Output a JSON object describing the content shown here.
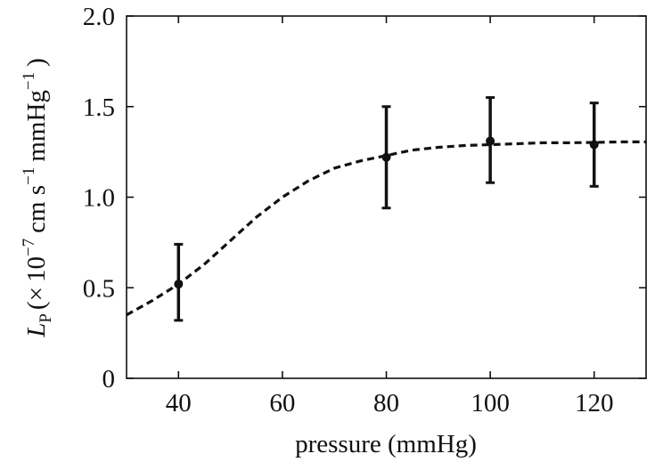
{
  "chart_data": {
    "type": "scatter",
    "title": "",
    "xlabel": "pressure (mmHg)",
    "ylabel": {
      "symbol": "L",
      "subscript": "P",
      "open": "(",
      "times": "×",
      "base": "10",
      "exp1": "−7",
      "unit1": "cm s",
      "exp2": "−1",
      "unit2": "mmHg",
      "exp3": "−1",
      "close": ")"
    },
    "xlim": [
      30,
      130
    ],
    "ylim": [
      0,
      2.0
    ],
    "xticks": [
      40,
      60,
      80,
      100,
      120
    ],
    "xtick_labels": [
      "40",
      "60",
      "80",
      "100",
      "120"
    ],
    "yticks": [
      0,
      0.5,
      1.0,
      1.5,
      2.0
    ],
    "ytick_labels": [
      "0",
      "0.5",
      "1.0",
      "1.5",
      "2.0"
    ],
    "grid": false,
    "points": [
      {
        "x": 40,
        "y": 0.52,
        "err_low": 0.32,
        "err_high": 0.74
      },
      {
        "x": 80,
        "y": 1.22,
        "err_low": 0.94,
        "err_high": 1.5
      },
      {
        "x": 100,
        "y": 1.31,
        "err_low": 1.08,
        "err_high": 1.55
      },
      {
        "x": 120,
        "y": 1.29,
        "err_low": 1.06,
        "err_high": 1.52
      }
    ],
    "fit_curve": {
      "style": "dashed",
      "x": [
        30,
        35,
        40,
        45,
        50,
        55,
        60,
        65,
        70,
        75,
        80,
        85,
        90,
        95,
        100,
        105,
        110,
        115,
        120,
        125,
        130
      ],
      "y": [
        0.35,
        0.43,
        0.52,
        0.63,
        0.76,
        0.89,
        1.0,
        1.09,
        1.16,
        1.2,
        1.23,
        1.26,
        1.275,
        1.285,
        1.29,
        1.295,
        1.3,
        1.3,
        1.302,
        1.305,
        1.305
      ]
    },
    "colors": {
      "marks": "#111111",
      "axes": "#111111"
    }
  }
}
